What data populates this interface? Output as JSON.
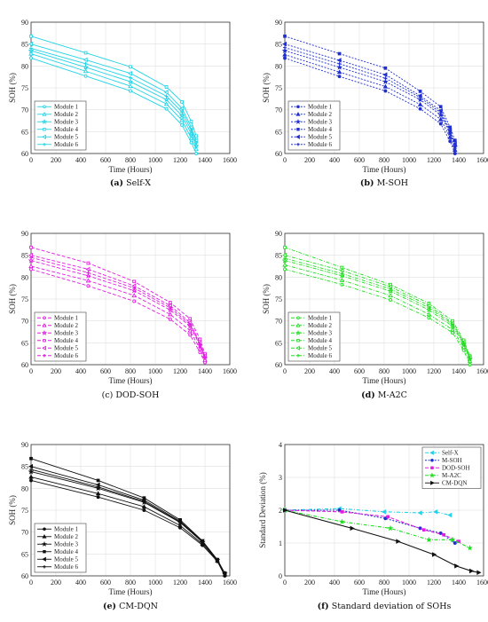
{
  "chart_data": [
    {
      "type": "line",
      "id": "a",
      "caption_bold": "(a)",
      "caption_text": " Self-X",
      "color": "#22d3e6",
      "dash": "",
      "xlabel": "Time (Hours)",
      "ylabel": "SOH (%)",
      "xlim": [
        0,
        1600
      ],
      "ylim": [
        60,
        90
      ],
      "xticks": [
        "0",
        "200",
        "400",
        "600",
        "800",
        "1000",
        "1200",
        "1400",
        "1600"
      ],
      "yticks": [
        "60",
        "65",
        "70",
        "75",
        "80",
        "85",
        "90"
      ],
      "legend_position": "bottom-left",
      "x": [
        0,
        440,
        800,
        1090,
        1215,
        1290,
        1330
      ],
      "series": [
        {
          "name": "Module 1",
          "marker": "circle",
          "values": [
            81.8,
            77.7,
            74.3,
            70.2,
            66.5,
            62.5,
            60.0
          ]
        },
        {
          "name": "Module 2",
          "marker": "triangle",
          "values": [
            82.8,
            78.8,
            75.4,
            71.3,
            67.6,
            63.5,
            61.0
          ]
        },
        {
          "name": "Module 3",
          "marker": "star",
          "values": [
            83.5,
            79.7,
            76.4,
            72.3,
            68.6,
            64.5,
            61.8
          ]
        },
        {
          "name": "Module 4",
          "marker": "square",
          "values": [
            86.8,
            83.0,
            79.8,
            75.2,
            71.8,
            67.3,
            64.0
          ]
        },
        {
          "name": "Module 5",
          "marker": "triangle-left",
          "values": [
            85.0,
            81.4,
            78.3,
            74.0,
            70.3,
            66.0,
            63.0
          ]
        },
        {
          "name": "Module 6",
          "marker": "plus",
          "values": [
            84.0,
            80.5,
            77.3,
            73.1,
            69.5,
            65.3,
            62.4
          ]
        }
      ]
    },
    {
      "type": "line",
      "id": "b",
      "caption_bold": "(b)",
      "caption_text": " M-SOH",
      "color": "#1f2fd0",
      "dash": "2,1.6",
      "xlabel": "Time (Hours)",
      "ylabel": "SOH (%)",
      "xlim": [
        0,
        1600
      ],
      "ylim": [
        60,
        90
      ],
      "xticks": [
        "0",
        "200",
        "400",
        "600",
        "800",
        "1000",
        "1200",
        "1400",
        "1600"
      ],
      "yticks": [
        "60",
        "65",
        "70",
        "75",
        "80",
        "85",
        "90"
      ],
      "legend_position": "bottom-left",
      "x": [
        0,
        440,
        810,
        1090,
        1255,
        1330,
        1370
      ],
      "series": [
        {
          "name": "Module 1",
          "marker": "circle",
          "values": [
            81.8,
            77.6,
            74.3,
            70.2,
            66.8,
            62.8,
            60.0
          ]
        },
        {
          "name": "Module 2",
          "marker": "triangle",
          "values": [
            82.6,
            78.6,
            75.3,
            71.2,
            67.8,
            63.7,
            60.8
          ]
        },
        {
          "name": "Module 3",
          "marker": "star",
          "values": [
            83.5,
            79.7,
            76.4,
            72.3,
            68.8,
            64.6,
            61.5
          ]
        },
        {
          "name": "Module 4",
          "marker": "square",
          "values": [
            86.8,
            82.8,
            79.5,
            74.2,
            70.7,
            66.0,
            63.0
          ]
        },
        {
          "name": "Module 5",
          "marker": "triangle-left",
          "values": [
            85.0,
            81.3,
            78.0,
            73.2,
            69.8,
            65.3,
            62.2
          ]
        },
        {
          "name": "Module 6",
          "marker": "plus",
          "values": [
            84.2,
            80.5,
            77.2,
            72.8,
            69.3,
            65.0,
            61.8
          ]
        }
      ]
    },
    {
      "type": "line",
      "id": "c",
      "caption_bold": "",
      "caption_text": "(c) DOD-SOH",
      "color": "#e01ee0",
      "dash": "4,2",
      "xlabel": "Time (Hours)",
      "ylabel": "SOH (%)",
      "xlim": [
        0,
        1600
      ],
      "ylim": [
        60,
        90
      ],
      "xticks": [
        "0",
        "200",
        "400",
        "600",
        "800",
        "1000",
        "1200",
        "1400",
        "1600"
      ],
      "yticks": [
        "60",
        "65",
        "70",
        "75",
        "80",
        "85",
        "90"
      ],
      "legend_position": "bottom-left",
      "x": [
        0,
        460,
        830,
        1120,
        1280,
        1360,
        1400
      ],
      "series": [
        {
          "name": "Module 1",
          "marker": "circle",
          "values": [
            81.8,
            78.0,
            74.5,
            70.4,
            66.8,
            62.8,
            60.5
          ]
        },
        {
          "name": "Module 2",
          "marker": "triangle",
          "values": [
            82.5,
            79.2,
            75.8,
            71.5,
            67.8,
            63.6,
            61.0
          ]
        },
        {
          "name": "Module 3",
          "marker": "star",
          "values": [
            83.8,
            80.3,
            76.9,
            72.5,
            68.8,
            64.4,
            61.5
          ]
        },
        {
          "name": "Module 4",
          "marker": "square",
          "values": [
            86.8,
            83.2,
            79.0,
            74.2,
            70.5,
            65.8,
            62.5
          ]
        },
        {
          "name": "Module 5",
          "marker": "triangle-left",
          "values": [
            85.0,
            81.8,
            78.0,
            73.5,
            69.6,
            65.0,
            62.0
          ]
        },
        {
          "name": "Module 6",
          "marker": "plus",
          "values": [
            84.5,
            81.0,
            77.5,
            73.0,
            69.2,
            64.7,
            61.8
          ]
        }
      ]
    },
    {
      "type": "line",
      "id": "d",
      "caption_bold": "(d)",
      "caption_text": " M-A2C",
      "color": "#22dd22",
      "dash": "4,1.6,1,1.6",
      "xlabel": "Time (Hours)",
      "ylabel": "SOH (%)",
      "xlim": [
        0,
        1600
      ],
      "ylim": [
        60,
        90
      ],
      "xticks": [
        "0",
        "200",
        "400",
        "600",
        "800",
        "1000",
        "1200",
        "1400",
        "1600"
      ],
      "yticks": [
        "60",
        "65",
        "70",
        "75",
        "80",
        "85",
        "90"
      ],
      "legend_position": "bottom-left",
      "x": [
        0,
        460,
        850,
        1160,
        1350,
        1440,
        1490
      ],
      "series": [
        {
          "name": "Module 1",
          "marker": "circle",
          "values": [
            81.8,
            78.3,
            74.8,
            70.7,
            67.3,
            63.3,
            60.0
          ]
        },
        {
          "name": "Module 2",
          "marker": "triangle",
          "values": [
            82.8,
            79.3,
            75.8,
            71.5,
            68.0,
            64.0,
            60.8
          ]
        },
        {
          "name": "Module 3",
          "marker": "star",
          "values": [
            83.8,
            80.3,
            76.8,
            72.5,
            68.8,
            64.7,
            61.3
          ]
        },
        {
          "name": "Module 4",
          "marker": "square",
          "values": [
            86.8,
            82.2,
            78.3,
            74.0,
            70.0,
            65.6,
            62.0
          ]
        },
        {
          "name": "Module 5",
          "marker": "triangle-left",
          "values": [
            85.0,
            81.5,
            77.8,
            73.5,
            69.5,
            65.2,
            61.7
          ]
        },
        {
          "name": "Module 6",
          "marker": "plus",
          "values": [
            84.3,
            80.8,
            77.3,
            73.0,
            69.2,
            65.0,
            61.5
          ]
        }
      ]
    },
    {
      "type": "line",
      "id": "e",
      "caption_bold": "(e)",
      "caption_text": " CM-DQN",
      "color": "#111111",
      "dash": "",
      "xlabel": "Time (Hours)",
      "ylabel": "SOH (%)",
      "xlim": [
        0,
        1600
      ],
      "ylim": [
        60,
        90
      ],
      "xticks": [
        "0",
        "200",
        "400",
        "600",
        "800",
        "1000",
        "1200",
        "1400",
        "1600"
      ],
      "yticks": [
        "60",
        "65",
        "70",
        "75",
        "80",
        "85",
        "90"
      ],
      "legend_position": "bottom-left",
      "x": [
        0,
        540,
        910,
        1200,
        1380,
        1500,
        1560
      ],
      "series": [
        {
          "name": "Module 1",
          "marker": "circle",
          "values": [
            81.8,
            78.0,
            75.0,
            71.0,
            67.0,
            63.3,
            60.0
          ]
        },
        {
          "name": "Module 2",
          "marker": "triangle",
          "values": [
            82.6,
            78.8,
            75.8,
            71.5,
            67.3,
            63.5,
            60.3
          ]
        },
        {
          "name": "Module 3",
          "marker": "star",
          "values": [
            83.8,
            80.0,
            76.8,
            72.2,
            67.7,
            63.6,
            60.5
          ]
        },
        {
          "name": "Module 4",
          "marker": "square",
          "values": [
            86.8,
            81.8,
            77.8,
            72.8,
            68.0,
            63.7,
            60.6
          ]
        },
        {
          "name": "Module 5",
          "marker": "triangle-left",
          "values": [
            85.0,
            80.8,
            77.3,
            72.5,
            67.9,
            63.6,
            60.5
          ]
        },
        {
          "name": "Module 6",
          "marker": "plus",
          "values": [
            84.3,
            80.3,
            77.0,
            72.3,
            67.8,
            63.5,
            60.4
          ]
        }
      ]
    },
    {
      "type": "line",
      "id": "f",
      "caption_bold": "(f)",
      "caption_text": " Standard deviation of SOHs",
      "xlabel": "Time (Hours)",
      "ylabel": "Standard Deviation (%)",
      "xlim": [
        0,
        1600
      ],
      "ylim": [
        0,
        4
      ],
      "xticks": [
        "0",
        "200",
        "400",
        "600",
        "800",
        "1000",
        "1200",
        "1400",
        "1600"
      ],
      "yticks": [
        "0",
        "1",
        "2",
        "3",
        "4"
      ],
      "legend_position": "top-right",
      "series": [
        {
          "name": "Self-X",
          "color": "#22d3e6",
          "dash": "4,2,1,2",
          "marker": "triangle-left",
          "x": [
            0,
            440,
            800,
            1090,
            1215,
            1330
          ],
          "values": [
            2.0,
            2.05,
            1.95,
            1.92,
            1.95,
            1.85
          ]
        },
        {
          "name": "M-SOH",
          "color": "#1f2fd0",
          "dash": "2,1.6",
          "marker": "circle",
          "x": [
            0,
            440,
            810,
            1090,
            1255,
            1370
          ],
          "values": [
            2.0,
            2.0,
            1.75,
            1.45,
            1.3,
            1.0
          ]
        },
        {
          "name": "DOD-SOH",
          "color": "#e01ee0",
          "dash": "4,2",
          "marker": "square",
          "x": [
            0,
            460,
            830,
            1120,
            1280,
            1400
          ],
          "values": [
            2.0,
            1.95,
            1.8,
            1.4,
            1.25,
            1.05
          ]
        },
        {
          "name": "M-A2C",
          "color": "#22dd22",
          "dash": "4,1.6,1,1.6",
          "marker": "star",
          "x": [
            0,
            460,
            850,
            1160,
            1350,
            1490
          ],
          "values": [
            2.0,
            1.65,
            1.45,
            1.1,
            1.1,
            0.85
          ]
        },
        {
          "name": "CM-DQN",
          "color": "#111111",
          "dash": "",
          "marker": "triangle-right",
          "x": [
            0,
            540,
            910,
            1200,
            1380,
            1500,
            1560
          ],
          "values": [
            2.0,
            1.45,
            1.05,
            0.65,
            0.3,
            0.15,
            0.1
          ]
        }
      ]
    }
  ]
}
